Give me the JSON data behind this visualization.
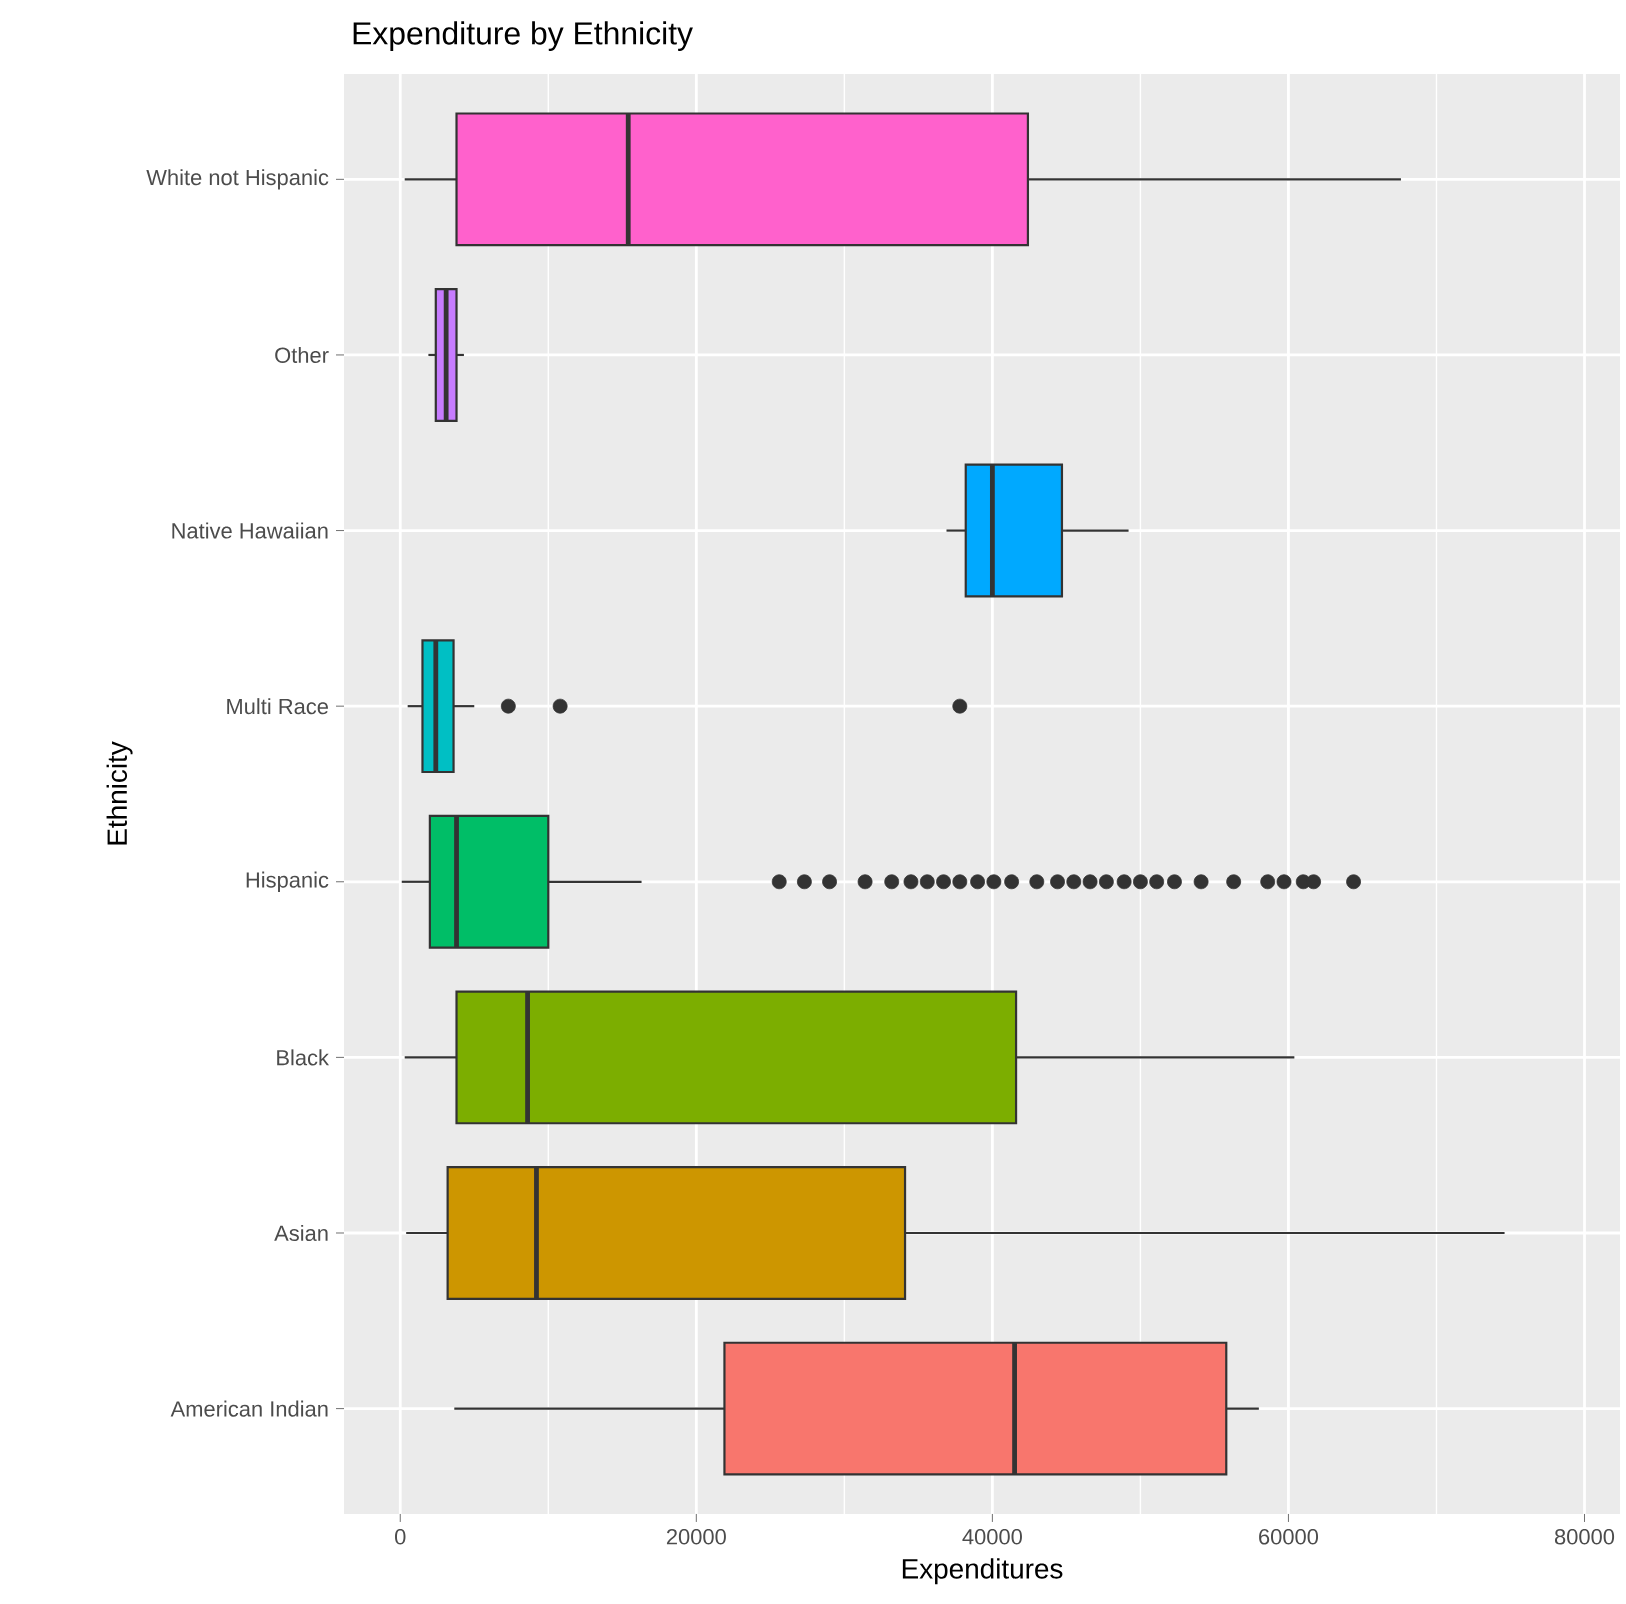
{
  "chart_data": {
    "type": "box",
    "title": "Expenditure by Ethnicity",
    "xlabel": "Expenditures",
    "ylabel": "Ethnicity",
    "orientation": "horizontal",
    "categories": [
      "White not Hispanic",
      "Other",
      "Native Hawaiian",
      "Multi Race",
      "Hispanic",
      "Black",
      "Asian",
      "American Indian"
    ],
    "colors": [
      "#ff61cc",
      "#c77cff",
      "#00a9ff",
      "#00bfc4",
      "#00be67",
      "#7cae00",
      "#cd9600",
      "#f8766d"
    ],
    "boxes": [
      {
        "low": 300,
        "q1": 3800,
        "median": 15400,
        "q3": 42400,
        "high": 67600
      },
      {
        "low": 1900,
        "q1": 2400,
        "median": 3100,
        "q3": 3800,
        "high": 4300
      },
      {
        "low": 36900,
        "q1": 38200,
        "median": 40000,
        "q3": 44700,
        "high": 49200
      },
      {
        "low": 500,
        "q1": 1500,
        "median": 2400,
        "q3": 3600,
        "high": 5000,
        "outliers": [
          7300,
          10800,
          37800
        ]
      },
      {
        "low": 100,
        "q1": 2000,
        "median": 3800,
        "q3": 10000,
        "high": 16300,
        "outliers": [
          25600,
          27300,
          29000,
          31400,
          33200,
          34500,
          35600,
          36700,
          37800,
          39000,
          40100,
          41300,
          43000,
          44400,
          45500,
          46600,
          47700,
          48900,
          50000,
          51100,
          52300,
          54100,
          56300,
          58600,
          59700,
          61000,
          61700,
          64400
        ]
      },
      {
        "low": 300,
        "q1": 3800,
        "median": 8600,
        "q3": 41600,
        "high": 60400
      },
      {
        "low": 400,
        "q1": 3200,
        "median": 9200,
        "q3": 34100,
        "high": 74600
      },
      {
        "low": 3650,
        "q1": 21900,
        "median": 41500,
        "q3": 55800,
        "high": 58000
      }
    ],
    "xlim": [
      -3800,
      82400
    ],
    "xticks": [
      0,
      20000,
      40000,
      60000,
      80000
    ],
    "grid": true
  }
}
